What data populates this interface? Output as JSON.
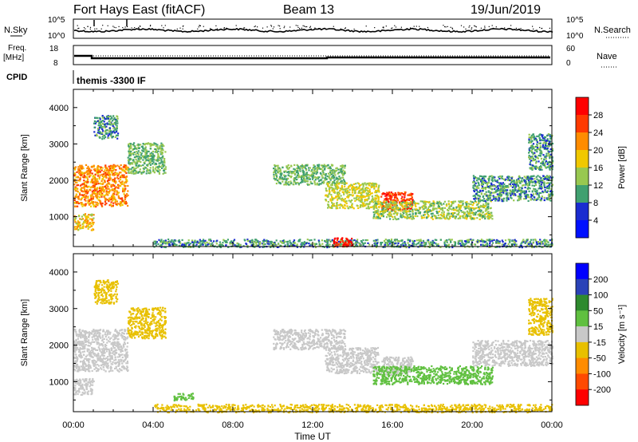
{
  "header": {
    "radar": "Fort Hays East (fitACF)",
    "beam": "Beam 13",
    "date": "19/Jun/2019"
  },
  "top_panels": {
    "nsky_label": "N.Sky",
    "nsearch_label": "N.Search",
    "nsky_tick_high": "10^5",
    "nsky_tick_low": "10^0",
    "nsearch_tick_high": "10^5",
    "nsearch_tick_low": "10^0",
    "freq_label": "Freq.",
    "freq_unit": "[MHz]",
    "freq_ticks": [
      "18",
      "8"
    ],
    "nave_label": "Nave",
    "nave_ticks": [
      "60",
      "0"
    ],
    "cpid_label": "CPID",
    "cpid_value": "themis -3300 IF"
  },
  "colorbars": {
    "power": {
      "label": "Power [dB]",
      "tick_labels": [
        "28",
        "24",
        "20",
        "16",
        "12",
        "8",
        "4"
      ],
      "colors": [
        "#ff0000",
        "#ff3a00",
        "#ff8c00",
        "#f0c800",
        "#98c850",
        "#40a070",
        "#1a2cd0",
        "#0010ff"
      ]
    },
    "velocity": {
      "label": "Velocity [m s⁻¹]",
      "tick_labels": [
        "200",
        "100",
        "50",
        "15",
        "-15",
        "-50",
        "-100",
        "-200"
      ],
      "colors": [
        "#0000ff",
        "#2a42b8",
        "#2e8a2e",
        "#60c040",
        "#c8c8c8",
        "#e8c000",
        "#ff8c00",
        "#ff4a00",
        "#ff0000"
      ]
    }
  },
  "chart_data": [
    {
      "type": "heatmap",
      "title": "",
      "xlabel": "",
      "ylabel": "Slant Range [km]",
      "x_tick_labels": [
        "00:00",
        "04:00",
        "08:00",
        "12:00",
        "16:00",
        "20:00",
        "00:00"
      ],
      "y_tick_labels": [
        "1000",
        "2000",
        "3000",
        "4000"
      ],
      "xlim": [
        0,
        24
      ],
      "ylim": [
        180,
        4500
      ],
      "grid": false,
      "colorbar": "power",
      "regions": [
        {
          "x": [
            0.0,
            2.7
          ],
          "y": [
            1300,
            2450
          ],
          "value": 22
        },
        {
          "x": [
            2.7,
            4.6
          ],
          "y": [
            2200,
            3050
          ],
          "value": 12
        },
        {
          "x": [
            0.0,
            1.0
          ],
          "y": [
            650,
            1100
          ],
          "value": 18
        },
        {
          "x": [
            1.0,
            2.2
          ],
          "y": [
            3150,
            3800
          ],
          "value": 10
        },
        {
          "x": [
            10.0,
            13.6
          ],
          "y": [
            1900,
            2450
          ],
          "value": 12
        },
        {
          "x": [
            12.6,
            15.3
          ],
          "y": [
            1250,
            1950
          ],
          "value": 16
        },
        {
          "x": [
            15.4,
            17.0
          ],
          "y": [
            1200,
            1700
          ],
          "value": 26
        },
        {
          "x": [
            15.0,
            21.0
          ],
          "y": [
            950,
            1450
          ],
          "value": 14
        },
        {
          "x": [
            20.0,
            24.0
          ],
          "y": [
            1450,
            2150
          ],
          "value": 10
        },
        {
          "x": [
            22.8,
            24.0
          ],
          "y": [
            2300,
            3300
          ],
          "value": 10
        },
        {
          "x": [
            4.0,
            24.0
          ],
          "y": [
            180,
            400
          ],
          "value": 10
        },
        {
          "x": [
            13.0,
            14.0
          ],
          "y": [
            200,
            450
          ],
          "value": 30
        }
      ]
    },
    {
      "type": "heatmap",
      "title": "",
      "xlabel": "Time UT",
      "ylabel": "Slant Range [km]",
      "x_tick_labels": [
        "00:00",
        "04:00",
        "08:00",
        "12:00",
        "16:00",
        "20:00",
        "00:00"
      ],
      "y_tick_labels": [
        "1000",
        "2000",
        "3000",
        "4000"
      ],
      "xlim": [
        0,
        24
      ],
      "ylim": [
        180,
        4500
      ],
      "grid": false,
      "colorbar": "velocity",
      "regions": [
        {
          "x": [
            0.0,
            2.7
          ],
          "y": [
            1300,
            2450
          ],
          "value": 0
        },
        {
          "x": [
            2.7,
            4.6
          ],
          "y": [
            2200,
            3050
          ],
          "value": -20
        },
        {
          "x": [
            0.0,
            1.0
          ],
          "y": [
            650,
            1100
          ],
          "value": 0
        },
        {
          "x": [
            1.0,
            2.2
          ],
          "y": [
            3150,
            3800
          ],
          "value": -20
        },
        {
          "x": [
            10.0,
            13.6
          ],
          "y": [
            1900,
            2450
          ],
          "value": 0
        },
        {
          "x": [
            12.6,
            15.3
          ],
          "y": [
            1250,
            1950
          ],
          "value": 0
        },
        {
          "x": [
            15.4,
            17.0
          ],
          "y": [
            1200,
            1700
          ],
          "value": 0
        },
        {
          "x": [
            15.0,
            21.0
          ],
          "y": [
            950,
            1450
          ],
          "value": 20
        },
        {
          "x": [
            20.0,
            24.0
          ],
          "y": [
            1450,
            2150
          ],
          "value": 0
        },
        {
          "x": [
            22.8,
            24.0
          ],
          "y": [
            2300,
            3300
          ],
          "value": -20
        },
        {
          "x": [
            4.0,
            24.0
          ],
          "y": [
            180,
            400
          ],
          "value": -30
        },
        {
          "x": [
            5.0,
            6.0
          ],
          "y": [
            500,
            700
          ],
          "value": 40
        }
      ]
    }
  ]
}
